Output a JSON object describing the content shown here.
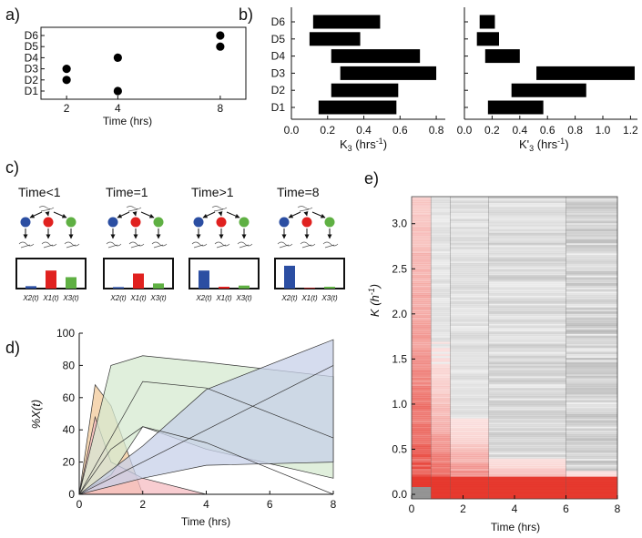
{
  "figure": {
    "panel_labels": [
      "a)",
      "b)",
      "c)",
      "d)",
      "e)"
    ]
  },
  "chart_data": [
    {
      "id": "a",
      "type": "scatter",
      "xlabel": "Time (hrs)",
      "xlim": [
        1,
        9
      ],
      "xticks": [
        2,
        4,
        8
      ],
      "yticks": [
        "D1",
        "D2",
        "D3",
        "D4",
        "D5",
        "D6"
      ],
      "points": [
        {
          "x": 2,
          "y": "D2"
        },
        {
          "x": 2,
          "y": "D3"
        },
        {
          "x": 4,
          "y": "D1"
        },
        {
          "x": 4,
          "y": "D4"
        },
        {
          "x": 8,
          "y": "D5"
        },
        {
          "x": 8,
          "y": "D6"
        }
      ]
    },
    {
      "id": "b-left",
      "type": "bar",
      "orientation": "horizontal-range",
      "xlabel_main": "K",
      "xlabel_sub": "3",
      "xlabel_unit": " (hrs",
      "xlabel_exp": "-1",
      "xlabel_end": ")",
      "xlim": [
        0,
        0.85
      ],
      "xticks": [
        0.0,
        0.2,
        0.4,
        0.6,
        0.8
      ],
      "categories": [
        "D1",
        "D2",
        "D3",
        "D4",
        "D5",
        "D6"
      ],
      "ranges": [
        [
          0.15,
          0.58
        ],
        [
          0.22,
          0.59
        ],
        [
          0.27,
          0.8
        ],
        [
          0.22,
          0.71
        ],
        [
          0.1,
          0.38
        ],
        [
          0.12,
          0.49
        ]
      ]
    },
    {
      "id": "b-right",
      "type": "bar",
      "orientation": "horizontal-range",
      "xlabel_main": "K'",
      "xlabel_sub": "3",
      "xlabel_unit": " (hrs",
      "xlabel_exp": "-1",
      "xlabel_end": ")",
      "xlim": [
        0,
        1.25
      ],
      "xticks": [
        0.0,
        0.2,
        0.4,
        0.6,
        0.8,
        1.0,
        1.2
      ],
      "categories": [
        "D1",
        "D2",
        "D3",
        "D4",
        "D5",
        "D6"
      ],
      "ranges": [
        [
          0.17,
          0.57
        ],
        [
          0.34,
          0.88
        ],
        [
          0.52,
          1.23
        ],
        [
          0.15,
          0.4
        ],
        [
          0.09,
          0.25
        ],
        [
          0.11,
          0.22
        ]
      ]
    },
    {
      "id": "c",
      "type": "bar",
      "panels": [
        {
          "title": "Time<1",
          "values": [
            0.08,
            0.6,
            0.38
          ]
        },
        {
          "title": "Time=1",
          "values": [
            0.05,
            0.5,
            0.17
          ]
        },
        {
          "title": "Time>1",
          "values": [
            0.6,
            0.06,
            0.1
          ]
        },
        {
          "title": "Time=8",
          "values": [
            0.76,
            0.02,
            0.06
          ]
        }
      ],
      "categories": [
        "X2(t)",
        "X1(t)",
        "X3(t)"
      ],
      "series_colors": [
        "#2b4ea2",
        "#e0211f",
        "#5fb043"
      ]
    },
    {
      "id": "d",
      "type": "area",
      "xlabel": "Time (hrs)",
      "ylabel": "%X(t)",
      "xlim": [
        0,
        8
      ],
      "ylim": [
        0,
        100
      ],
      "xticks": [
        0,
        2,
        4,
        6,
        8
      ],
      "yticks": [
        0,
        20,
        40,
        60,
        80,
        100
      ],
      "bands": [
        {
          "name": "orange",
          "color": "#f1c99a",
          "x": [
            0,
            0.5,
            1,
            2
          ],
          "upper": [
            0,
            68,
            55,
            0
          ],
          "lower": [
            0,
            0,
            0,
            0
          ]
        },
        {
          "name": "red",
          "color": "#f6bcc2",
          "x": [
            0,
            0.5,
            1,
            2,
            4
          ],
          "upper": [
            0,
            48,
            20,
            10,
            0
          ],
          "lower": [
            0,
            0,
            0,
            0,
            0
          ]
        },
        {
          "name": "green",
          "color": "#d6ead0",
          "x": [
            0,
            1,
            2,
            4,
            8
          ],
          "upper": [
            0,
            80,
            86,
            82,
            73
          ],
          "lower": [
            0,
            12,
            42,
            28,
            10
          ]
        },
        {
          "name": "blue",
          "color": "#c7d0e8",
          "x": [
            0,
            2,
            4,
            8
          ],
          "upper": [
            0,
            30,
            65,
            96
          ],
          "lower": [
            0,
            10,
            18,
            20
          ]
        }
      ],
      "lines": [
        {
          "x": [
            0,
            2,
            4,
            8
          ],
          "y": [
            0,
            70,
            66,
            35
          ]
        },
        {
          "x": [
            0,
            1,
            2,
            4,
            8
          ],
          "y": [
            0,
            28,
            42,
            32,
            0
          ]
        },
        {
          "x": [
            0,
            4,
            8
          ],
          "y": [
            0,
            40,
            80
          ]
        }
      ]
    },
    {
      "id": "e",
      "type": "heatmap",
      "xlabel": "Time (hrs)",
      "ylabel": "K (h",
      "ylabel_exp": "-1",
      "ylabel_end": ")",
      "xlim": [
        0,
        8
      ],
      "ylim": [
        -0.05,
        3.3
      ],
      "xticks": [
        0,
        2,
        4,
        6,
        8
      ],
      "yticks": [
        0.0,
        0.5,
        1.0,
        1.5,
        2.0,
        2.5,
        3.0
      ],
      "time_breaks": [
        0,
        0.75,
        1.5,
        3,
        6,
        8
      ],
      "colors": {
        "red": "#e52f24",
        "gray": "#8a8a8a"
      }
    }
  ]
}
